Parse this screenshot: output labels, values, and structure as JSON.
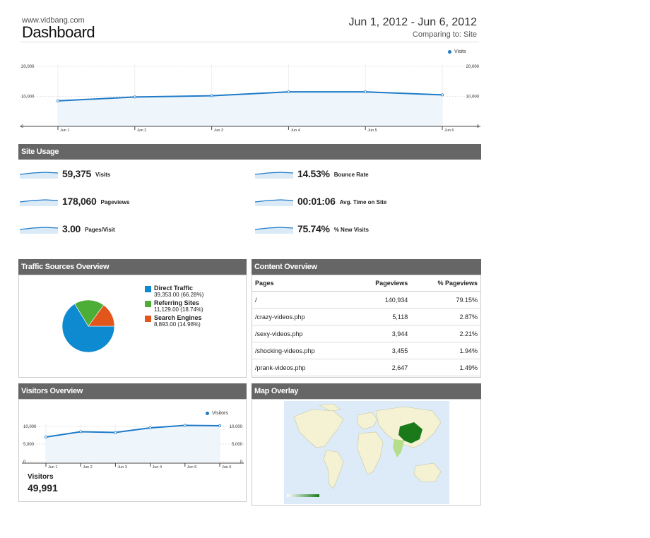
{
  "header": {
    "site": "www.vidbang.com",
    "title": "Dashboard",
    "date_range": "Jun 1, 2012 - Jun 6, 2012",
    "comparing": "Comparing to: Site"
  },
  "colors": {
    "accent": "#1f7bc8",
    "header_bar": "#666666",
    "direct": "#0e8ad0",
    "referring": "#4cae37",
    "search": "#e2561c",
    "map_highlight": "#1a7a1a"
  },
  "main_chart": {
    "legend": "Visits",
    "y_ticks_left": [
      "20,000",
      "10,000",
      "0"
    ],
    "y_ticks_right": [
      "20,000",
      "10,000",
      "0"
    ],
    "x_ticks": [
      "Jun 1",
      "Jun 2",
      "Jun 3",
      "Jun 4",
      "Jun 5",
      "Jun 6"
    ]
  },
  "site_usage": {
    "title": "Site Usage",
    "metrics": [
      {
        "value": "59,375",
        "label": "Visits"
      },
      {
        "value": "14.53%",
        "label": "Bounce Rate"
      },
      {
        "value": "178,060",
        "label": "Pageviews"
      },
      {
        "value": "00:01:06",
        "label": "Avg. Time on Site"
      },
      {
        "value": "3.00",
        "label": "Pages/Visit"
      },
      {
        "value": "75.74%",
        "label": "% New Visits"
      }
    ]
  },
  "traffic_sources": {
    "title": "Traffic Sources Overview",
    "items": [
      {
        "name": "Direct Traffic",
        "detail": "39,353.00 (66.28%)",
        "share": 66.28
      },
      {
        "name": "Referring Sites",
        "detail": "11,129.00 (18.74%)",
        "share": 18.74
      },
      {
        "name": "Search Engines",
        "detail": "8,893.00 (14.98%)",
        "share": 14.98
      }
    ]
  },
  "content_overview": {
    "title": "Content Overview",
    "columns": [
      "Pages",
      "Pageviews",
      "% Pageviews"
    ],
    "rows": [
      [
        "/",
        "140,934",
        "79.15%"
      ],
      [
        "/crazy-videos.php",
        "5,118",
        "2.87%"
      ],
      [
        "/sexy-videos.php",
        "3,944",
        "2.21%"
      ],
      [
        "/shocking-videos.php",
        "3,455",
        "1.94%"
      ],
      [
        "/prank-videos.php",
        "2,647",
        "1.49%"
      ]
    ]
  },
  "visitors_overview": {
    "title": "Visitors Overview",
    "legend": "Visitors",
    "y_ticks_left": [
      "10,000",
      "5,000",
      "0"
    ],
    "y_ticks_right": [
      "10,000",
      "5,000",
      "0"
    ],
    "x_ticks": [
      "Jun 1",
      "Jun 2",
      "Jun 3",
      "Jun 4",
      "Jun 5",
      "Jun 6"
    ],
    "label": "Visitors",
    "value": "49,991"
  },
  "map_overlay": {
    "title": "Map Overlay"
  },
  "chart_data": [
    {
      "type": "area",
      "x": [
        "Jun 1",
        "Jun 2",
        "Jun 3",
        "Jun 4",
        "Jun 5",
        "Jun 6"
      ],
      "series": [
        {
          "name": "Visits",
          "values": [
            8500,
            9800,
            10200,
            11500,
            11500,
            10500
          ]
        }
      ],
      "ylim": [
        0,
        20000
      ],
      "legend": "top-right"
    },
    {
      "type": "pie",
      "categories": [
        "Direct Traffic",
        "Referring Sites",
        "Search Engines"
      ],
      "values": [
        66.28,
        18.74,
        14.98
      ]
    },
    {
      "type": "line",
      "x": [
        "Jun 1",
        "Jun 2",
        "Jun 3",
        "Jun 4",
        "Jun 5",
        "Jun 6"
      ],
      "series": [
        {
          "name": "Visitors",
          "values": [
            7000,
            8500,
            8300,
            9600,
            10300,
            10200
          ]
        }
      ],
      "ylim": [
        0,
        10000
      ],
      "legend": "top-right"
    }
  ]
}
